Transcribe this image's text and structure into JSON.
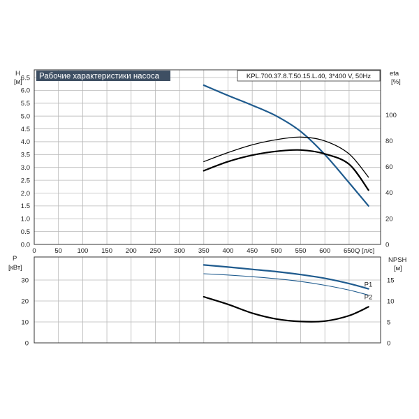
{
  "colors": {
    "blue": "#1f5b8e",
    "black": "#000000",
    "title_bg": "#3e4f63"
  },
  "chart_data": [
    {
      "type": "line",
      "title": "Рабочие характеристики насоса",
      "model": "KPL.700.37.8.T.50.15.L.40, 3*400 V, 50Hz",
      "xlabel": "Q [л/с]",
      "ylabel_left": "H",
      "ylabel_left_unit": "[м]",
      "ylabel_right": "eta",
      "ylabel_right_unit": "[%]",
      "xlim": [
        0,
        715
      ],
      "ylim_left": [
        0,
        6.8
      ],
      "ylim_right": [
        0,
        135
      ],
      "x_ticks": [
        "0",
        "50",
        "100",
        "150",
        "200",
        "250",
        "300",
        "350",
        "400",
        "450",
        "500",
        "550",
        "600",
        "650"
      ],
      "y_ticks_left": [
        "0.0",
        "0.5",
        "1.0",
        "1.5",
        "2.0",
        "2.5",
        "3.0",
        "3.5",
        "4.0",
        "4.5",
        "5.0",
        "5.5",
        "6.0",
        "6.5"
      ],
      "y_ticks_right": [
        "0",
        "20",
        "40",
        "60",
        "80",
        "100"
      ],
      "grid": true,
      "series": [
        {
          "axis": "left",
          "color": "#1f5b8e",
          "width": 2.2,
          "x": [
            350,
            400,
            450,
            500,
            550,
            600,
            650,
            690
          ],
          "y": [
            6.2,
            5.8,
            5.42,
            5.0,
            4.4,
            3.5,
            2.4,
            1.5
          ]
        },
        {
          "axis": "right",
          "color": "#000000",
          "width": 1.3,
          "x": [
            350,
            400,
            450,
            500,
            550,
            600,
            650,
            690
          ],
          "y": [
            64,
            71,
            77,
            81,
            83,
            80,
            70,
            52
          ]
        },
        {
          "axis": "right",
          "color": "#000000",
          "width": 2.2,
          "x": [
            350,
            400,
            450,
            500,
            550,
            600,
            650,
            690
          ],
          "y": [
            57,
            64,
            69,
            72,
            73,
            70,
            62,
            42
          ]
        }
      ]
    },
    {
      "type": "line",
      "ylabel_left": "P",
      "ylabel_left_unit": "[кВт]",
      "ylabel_right": "NPSH",
      "ylabel_right_unit": "[м]",
      "xlim": [
        0,
        715
      ],
      "ylim_left": [
        0,
        41
      ],
      "ylim_right": [
        0,
        20.5
      ],
      "y_ticks_left": [
        "0",
        "10",
        "20",
        "30"
      ],
      "y_ticks_right": [
        "0",
        "5",
        "10",
        "15"
      ],
      "grid": true,
      "series": [
        {
          "name": "P1",
          "axis": "left",
          "color": "#1f5b8e",
          "width": 2.2,
          "x": [
            350,
            400,
            450,
            500,
            550,
            600,
            650,
            690
          ],
          "y": [
            37.2,
            36.2,
            35.1,
            34.0,
            32.6,
            30.8,
            28.3,
            25.8
          ]
        },
        {
          "name": "P2",
          "axis": "left",
          "color": "#1f5b8e",
          "width": 1.1,
          "x": [
            350,
            400,
            450,
            500,
            550,
            600,
            650,
            690
          ],
          "y": [
            33.0,
            32.4,
            31.6,
            30.6,
            29.3,
            27.5,
            25.2,
            22.8
          ]
        },
        {
          "axis": "right",
          "color": "#000000",
          "width": 2.2,
          "x": [
            350,
            400,
            450,
            500,
            550,
            600,
            650,
            690
          ],
          "y": [
            11.0,
            9.2,
            7.1,
            5.7,
            5.1,
            5.2,
            6.5,
            8.6
          ]
        }
      ]
    }
  ]
}
